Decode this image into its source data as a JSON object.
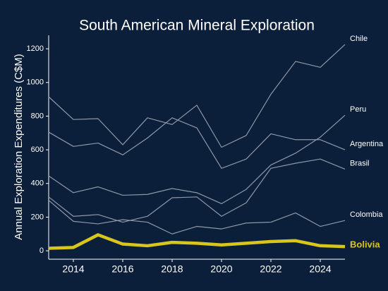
{
  "chart_data": {
    "type": "line",
    "title": "South American Mineral Exploration",
    "y_label": "Annual Exploration Expenditures (C$M)",
    "x": [
      2013,
      2014,
      2015,
      2016,
      2017,
      2018,
      2019,
      2020,
      2021,
      2022,
      2023,
      2024,
      2025
    ],
    "xlim": [
      2013,
      2025
    ],
    "xticks": [
      2014,
      2016,
      2018,
      2020,
      2022,
      2024
    ],
    "ylim": [
      -50,
      1280
    ],
    "yticks": [
      0,
      200,
      400,
      600,
      800,
      1000,
      1200
    ],
    "series": [
      {
        "name": "Chile",
        "color": "#8e97a8",
        "line_width": 1.2,
        "values": [
          915,
          780,
          785,
          630,
          790,
          750,
          865,
          615,
          685,
          930,
          1125,
          1090,
          1225
        ]
      },
      {
        "name": "Peru",
        "color": "#8e97a8",
        "line_width": 1.2,
        "values": [
          445,
          345,
          380,
          330,
          335,
          370,
          345,
          280,
          365,
          510,
          580,
          675,
          805
        ]
      },
      {
        "name": "Argentina",
        "color": "#8e97a8",
        "line_width": 1.2,
        "values": [
          705,
          620,
          640,
          570,
          670,
          790,
          730,
          490,
          545,
          695,
          660,
          660,
          600
        ]
      },
      {
        "name": "Brasil",
        "color": "#8e97a8",
        "line_width": 1.2,
        "values": [
          320,
          205,
          215,
          170,
          205,
          315,
          320,
          205,
          285,
          490,
          520,
          545,
          485
        ]
      },
      {
        "name": "Colombia",
        "color": "#8e97a8",
        "line_width": 1.2,
        "values": [
          300,
          175,
          160,
          185,
          170,
          100,
          145,
          130,
          165,
          170,
          225,
          145,
          180
        ]
      },
      {
        "name": "Bolivia",
        "color": "#d8c61a",
        "line_width": 4.5,
        "values": [
          15,
          20,
          95,
          40,
          30,
          50,
          45,
          35,
          45,
          55,
          60,
          30,
          25
        ]
      }
    ]
  }
}
